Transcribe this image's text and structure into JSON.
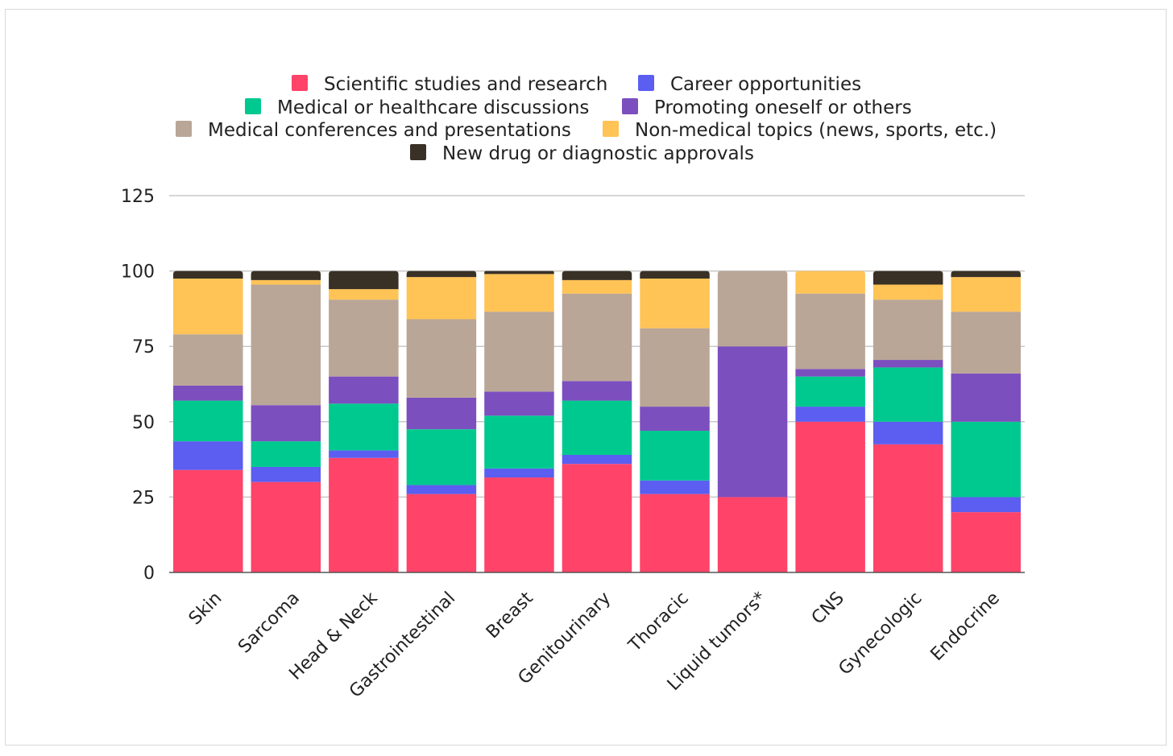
{
  "chart_data": {
    "type": "bar",
    "stacked": true,
    "categories": [
      "Skin",
      "Sarcoma",
      "Head & Neck",
      "Gastrointestinal",
      "Breast",
      "Genitourinary",
      "Thoracic",
      "Liquid tumors*",
      "CNS",
      "Gynecologic",
      "Endocrine"
    ],
    "series": [
      {
        "name": "Scientific studies and research",
        "color": "#ff4369",
        "values": [
          34,
          30,
          38,
          26,
          31.5,
          36,
          26,
          25,
          50,
          42.5,
          20
        ]
      },
      {
        "name": "Career opportunities",
        "color": "#5b5ef0",
        "values": [
          9.5,
          5,
          2.5,
          3,
          3,
          3,
          4.5,
          0,
          5,
          7.5,
          5
        ]
      },
      {
        "name": "Medical or healthcare discussions",
        "color": "#00c98f",
        "values": [
          13.5,
          8.5,
          15.5,
          18.5,
          17.5,
          18,
          16.5,
          0,
          10,
          18,
          25
        ]
      },
      {
        "name": "Promoting oneself or others",
        "color": "#7c4fbf",
        "values": [
          5,
          12,
          9,
          10.5,
          8,
          6.5,
          8,
          50,
          2.5,
          2.5,
          16
        ]
      },
      {
        "name": "Medical conferences and presentations",
        "color": "#b9a697",
        "values": [
          17,
          40,
          25.5,
          26,
          26.5,
          29,
          26,
          25,
          25,
          20,
          20.5
        ]
      },
      {
        "name": "Non-medical topics (news, sports, etc.)",
        "color": "#ffc356",
        "values": [
          18.5,
          1.5,
          3.5,
          14,
          12.5,
          4.5,
          16.5,
          0,
          7.5,
          5,
          11.5
        ]
      },
      {
        "name": "New drug or diagnostic approvals",
        "color": "#3a3126",
        "values": [
          2.5,
          3,
          6,
          2,
          1,
          3,
          2.5,
          0,
          0,
          4.5,
          2
        ]
      }
    ],
    "yticks": [
      0,
      25,
      50,
      75,
      100,
      125
    ],
    "ylim": [
      0,
      125
    ],
    "grid": true,
    "legend": "top",
    "title": "",
    "xlabel": "",
    "ylabel": ""
  }
}
